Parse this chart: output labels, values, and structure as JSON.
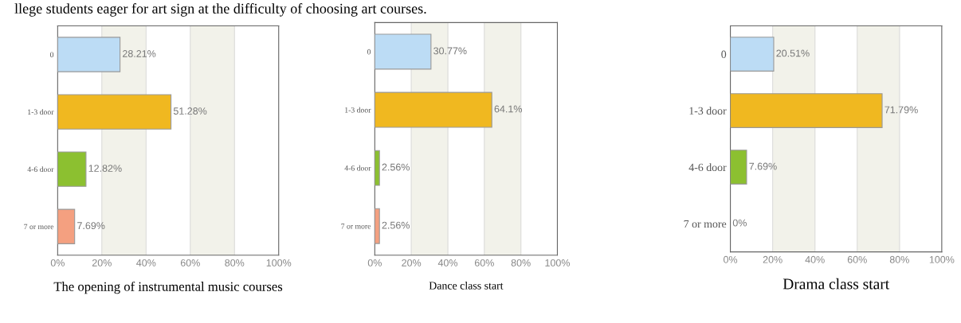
{
  "chart_data": [
    {
      "type": "bar",
      "orientation": "horizontal",
      "xlabel": "The opening of instrumental music courses",
      "annotations": [
        "llege students eager for art sign at the difficulty of choosing art courses."
      ],
      "categories": [
        "0",
        "1-3 door",
        "4-6 door",
        "7 or more"
      ],
      "values": [
        28.21,
        51.28,
        12.82,
        7.69
      ],
      "value_labels": [
        "28.21%",
        "51.28%",
        "12.82%",
        "7.69%"
      ],
      "colors": [
        "#bcdcf5",
        "#f0b820",
        "#8cc030",
        "#f4a080"
      ],
      "xlim": [
        0,
        100
      ],
      "xticks": [
        {
          "value": 0,
          "label": "0%"
        },
        {
          "value": 20,
          "label": "20%"
        },
        {
          "value": 40,
          "label": "40%"
        },
        {
          "value": 60,
          "label": "60%"
        },
        {
          "value": 80,
          "label": "80%"
        },
        {
          "value": 100,
          "label": "100%"
        }
      ],
      "grid": "x"
    },
    {
      "type": "bar",
      "orientation": "horizontal",
      "xlabel": "Dance class start",
      "categories": [
        "0",
        "1-3 door",
        "4-6 door",
        "7 or more"
      ],
      "values": [
        30.77,
        64.1,
        2.56,
        2.56
      ],
      "value_labels": [
        "30.77%",
        "64.1%",
        "2.56%",
        "2.56%"
      ],
      "colors": [
        "#bcdcf5",
        "#f0b820",
        "#8cc030",
        "#f4a080"
      ],
      "xlim": [
        0,
        100
      ],
      "xticks": [
        {
          "value": 0,
          "label": "0%"
        },
        {
          "value": 20,
          "label": "20%"
        },
        {
          "value": 40,
          "label": "40%"
        },
        {
          "value": 60,
          "label": "60%"
        },
        {
          "value": 80,
          "label": "80%"
        },
        {
          "value": 100,
          "label": "100%"
        }
      ],
      "grid": "x"
    },
    {
      "type": "bar",
      "orientation": "horizontal",
      "xlabel": "Drama class start",
      "categories": [
        "0",
        "1-3 door",
        "4-6 door",
        "7 or more"
      ],
      "values": [
        20.51,
        71.79,
        7.69,
        0
      ],
      "value_labels": [
        "20.51%",
        "71.79%",
        "7.69%",
        "0%"
      ],
      "colors": [
        "#bcdcf5",
        "#f0b820",
        "#8cc030",
        "#f4a080"
      ],
      "xlim": [
        0,
        100
      ],
      "xticks": [
        {
          "value": 0,
          "label": "0%"
        },
        {
          "value": 20,
          "label": "20%"
        },
        {
          "value": 40,
          "label": "40%"
        },
        {
          "value": 60,
          "label": "60%"
        },
        {
          "value": 80,
          "label": "80%"
        },
        {
          "value": 100,
          "label": "100%"
        }
      ],
      "grid": "x"
    }
  ]
}
